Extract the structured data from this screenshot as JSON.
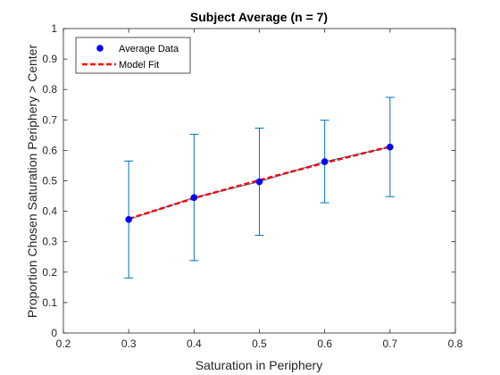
{
  "chart_data": {
    "type": "line",
    "title": "Subject Average (n = 7)",
    "xlabel": "Saturation in Periphery",
    "ylabel": "Proportion Chosen Saturation Periphery > Center",
    "xlim": [
      0.2,
      0.8
    ],
    "ylim": [
      0,
      1
    ],
    "xticks": [
      0.2,
      0.3,
      0.4,
      0.5,
      0.6,
      0.7,
      0.8
    ],
    "xtick_labels": [
      "0.2",
      "0.3",
      "0.4",
      "0.5",
      "0.6",
      "0.7",
      "0.8"
    ],
    "yticks": [
      0,
      0.1,
      0.2,
      0.3,
      0.4,
      0.5,
      0.6,
      0.7,
      0.8,
      0.9,
      1
    ],
    "ytick_labels": [
      "0",
      "0.1",
      "0.2",
      "0.3",
      "0.4",
      "0.5",
      "0.6",
      "0.7",
      "0.8",
      "0.9",
      "1"
    ],
    "grid": false,
    "legend_position": "top-left",
    "series": [
      {
        "name": "Average Data",
        "style": "markers-with-errorbars",
        "color": "#0000ff",
        "errorbar_color": "#0072bd",
        "x": [
          0.3,
          0.4,
          0.5,
          0.6,
          0.7
        ],
        "y": [
          0.373,
          0.445,
          0.497,
          0.563,
          0.611
        ],
        "error_upper": [
          0.565,
          0.653,
          0.673,
          0.699,
          0.774
        ],
        "error_lower": [
          0.181,
          0.238,
          0.321,
          0.428,
          0.448
        ]
      },
      {
        "name": "Model Fit",
        "style": "dashed-line",
        "color": "#ff0000",
        "x": [
          0.3,
          0.4,
          0.5,
          0.6,
          0.7
        ],
        "y": [
          0.375,
          0.443,
          0.502,
          0.559,
          0.612
        ]
      }
    ]
  }
}
